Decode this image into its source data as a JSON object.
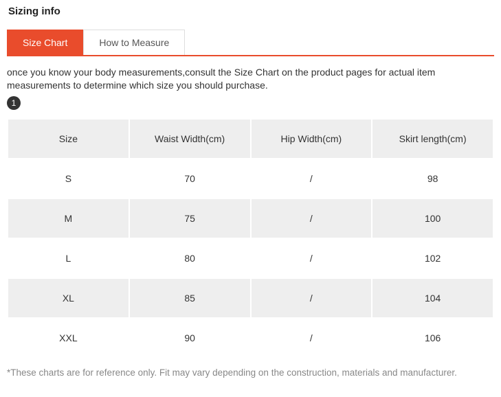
{
  "title": "Sizing info",
  "tabs": {
    "active": "Size Chart",
    "inactive": "How to Measure"
  },
  "intro": "once you know your body measurements,consult the Size Chart on the product pages for actual item measurements to determine which size you should purchase.",
  "badge": "1",
  "table": {
    "columns": [
      "Size",
      "Waist Width(cm)",
      "Hip Width(cm)",
      "Skirt length(cm)"
    ],
    "rows": [
      [
        "S",
        "70",
        "/",
        "98"
      ],
      [
        "M",
        "75",
        "/",
        "100"
      ],
      [
        "L",
        "80",
        "/",
        "102"
      ],
      [
        "XL",
        "85",
        "/",
        "104"
      ],
      [
        "XXL",
        "90",
        "/",
        "106"
      ]
    ],
    "header_bg": "#eeeeee",
    "row_alt_bg": "#eeeeee",
    "row_bg": "#ffffff",
    "text_color": "#333333",
    "cell_font_size": 14
  },
  "footnote": "*These charts are for reference only. Fit may vary depending on the construction, materials and manufacturer.",
  "colors": {
    "accent": "#e94c2c",
    "tab_border": "#dddddd",
    "text": "#333333",
    "muted": "#888888",
    "badge_bg": "#333333"
  }
}
